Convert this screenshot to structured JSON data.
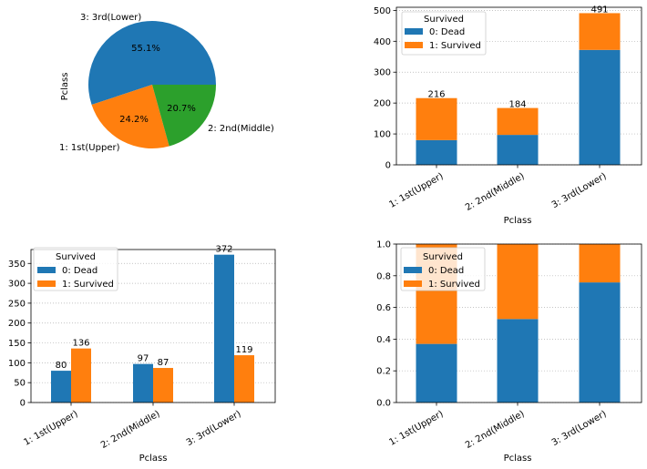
{
  "colors": {
    "dead": "#1f77b4",
    "survived": "#ff7f0e",
    "middle": "#2ca02c",
    "grid": "#b0b0b0",
    "frame": "#000000"
  },
  "chart_data": [
    {
      "type": "pie",
      "ylabel": "Pclass",
      "slices": [
        {
          "label": "3: 3rd(Lower)",
          "pct_label": "55.1%",
          "value": 55.1,
          "color": "#1f77b4"
        },
        {
          "label": "1: 1st(Upper)",
          "pct_label": "24.2%",
          "value": 24.2,
          "color": "#ff7f0e"
        },
        {
          "label": "2: 2nd(Middle)",
          "pct_label": "20.7%",
          "value": 20.7,
          "color": "#2ca02c"
        }
      ]
    },
    {
      "type": "bar",
      "stacked": true,
      "categories": [
        "1: 1st(Upper)",
        "2: 2nd(Middle)",
        "3: 3rd(Lower)"
      ],
      "series": [
        {
          "name": "0: Dead",
          "values": [
            80,
            97,
            372
          ],
          "color": "#1f77b4"
        },
        {
          "name": "1: Survived",
          "values": [
            136,
            87,
            119
          ],
          "color": "#ff7f0e"
        }
      ],
      "totals": [
        216,
        184,
        491
      ],
      "xlabel": "Pclass",
      "ylim": [
        0,
        510
      ],
      "yticks": [
        0,
        100,
        200,
        300,
        400,
        500
      ],
      "legend": {
        "title": "Survived",
        "position": "top-left"
      },
      "grid": "y-dotted"
    },
    {
      "type": "bar",
      "stacked": false,
      "categories": [
        "1: 1st(Upper)",
        "2: 2nd(Middle)",
        "3: 3rd(Lower)"
      ],
      "series": [
        {
          "name": "0: Dead",
          "values": [
            80,
            97,
            372
          ],
          "color": "#1f77b4"
        },
        {
          "name": "1: Survived",
          "values": [
            136,
            87,
            119
          ],
          "color": "#ff7f0e"
        }
      ],
      "xlabel": "Pclass",
      "ylim": [
        0,
        385
      ],
      "yticks": [
        0,
        50,
        100,
        150,
        200,
        250,
        300,
        350
      ],
      "legend": {
        "title": "Survived",
        "position": "top-left"
      },
      "grid": "y-dotted"
    },
    {
      "type": "bar",
      "stacked": true,
      "normalized": true,
      "categories": [
        "1: 1st(Upper)",
        "2: 2nd(Middle)",
        "3: 3rd(Lower)"
      ],
      "series": [
        {
          "name": "0: Dead",
          "values": [
            0.37,
            0.527,
            0.758
          ],
          "color": "#1f77b4"
        },
        {
          "name": "1: Survived",
          "values": [
            0.63,
            0.473,
            0.242
          ],
          "color": "#ff7f0e"
        }
      ],
      "xlabel": "Pclass",
      "ylim": [
        0,
        1.0
      ],
      "yticks": [
        0.0,
        0.2,
        0.4,
        0.6,
        0.8,
        1.0
      ],
      "legend": {
        "title": "Survived",
        "position": "top-left"
      },
      "grid": "y-dotted"
    }
  ]
}
